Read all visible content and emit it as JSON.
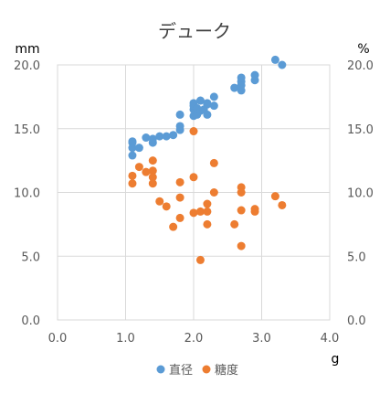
{
  "chart_data": {
    "type": "scatter",
    "title": "デューク",
    "y_unit_left": "mm",
    "y_unit_right": "%",
    "x_unit": "g",
    "xlim": [
      0.0,
      4.0
    ],
    "ylim": [
      0.0,
      20.0
    ],
    "x_ticks": [
      "0.0",
      "1.0",
      "2.0",
      "3.0",
      "4.0"
    ],
    "y_ticks": [
      "0.0",
      "5.0",
      "10.0",
      "15.0",
      "20.0"
    ],
    "y_ticks_right": [
      "0.0",
      "5.0",
      "10.0",
      "15.0",
      "20.0"
    ],
    "grid": true,
    "legend_position": "bottom",
    "series": [
      {
        "name": "直径",
        "color": "#5b9bd5",
        "points": [
          [
            1.1,
            12.9
          ],
          [
            1.1,
            13.5
          ],
          [
            1.1,
            13.9
          ],
          [
            1.1,
            14.0
          ],
          [
            1.2,
            13.5
          ],
          [
            1.3,
            14.3
          ],
          [
            1.4,
            13.9
          ],
          [
            1.4,
            14.2
          ],
          [
            1.5,
            14.4
          ],
          [
            1.6,
            14.4
          ],
          [
            1.7,
            14.5
          ],
          [
            1.8,
            14.9
          ],
          [
            1.8,
            15.2
          ],
          [
            1.8,
            16.1
          ],
          [
            2.0,
            16.0
          ],
          [
            2.0,
            16.5
          ],
          [
            2.0,
            16.8
          ],
          [
            2.0,
            17.0
          ],
          [
            2.05,
            16.1
          ],
          [
            2.05,
            16.6
          ],
          [
            2.1,
            16.4
          ],
          [
            2.1,
            17.2
          ],
          [
            2.15,
            16.5
          ],
          [
            2.2,
            16.1
          ],
          [
            2.2,
            16.9
          ],
          [
            2.2,
            17.0
          ],
          [
            2.3,
            16.8
          ],
          [
            2.3,
            17.5
          ],
          [
            2.6,
            18.2
          ],
          [
            2.7,
            18.0
          ],
          [
            2.7,
            18.4
          ],
          [
            2.7,
            18.7
          ],
          [
            2.7,
            19.0
          ],
          [
            2.9,
            18.8
          ],
          [
            2.9,
            19.2
          ],
          [
            3.2,
            20.4
          ],
          [
            3.3,
            20.0
          ]
        ]
      },
      {
        "name": "糖度",
        "color": "#ed7d31",
        "points": [
          [
            1.1,
            10.7
          ],
          [
            1.1,
            11.3
          ],
          [
            1.2,
            12.0
          ],
          [
            1.3,
            11.6
          ],
          [
            1.4,
            12.5
          ],
          [
            1.4,
            11.7
          ],
          [
            1.4,
            11.2
          ],
          [
            1.4,
            10.7
          ],
          [
            1.5,
            9.3
          ],
          [
            1.6,
            8.9
          ],
          [
            1.7,
            7.3
          ],
          [
            1.8,
            10.8
          ],
          [
            1.8,
            9.6
          ],
          [
            1.8,
            8.0
          ],
          [
            2.0,
            14.8
          ],
          [
            2.0,
            11.2
          ],
          [
            2.0,
            8.4
          ],
          [
            2.1,
            8.5
          ],
          [
            2.1,
            4.7
          ],
          [
            2.2,
            9.1
          ],
          [
            2.2,
            8.5
          ],
          [
            2.2,
            7.5
          ],
          [
            2.3,
            12.3
          ],
          [
            2.3,
            10.0
          ],
          [
            2.6,
            7.5
          ],
          [
            2.7,
            10.4
          ],
          [
            2.7,
            10.0
          ],
          [
            2.7,
            8.6
          ],
          [
            2.7,
            5.8
          ],
          [
            2.9,
            8.7
          ],
          [
            2.9,
            8.5
          ],
          [
            3.2,
            9.7
          ],
          [
            3.3,
            9.0
          ]
        ]
      }
    ]
  }
}
